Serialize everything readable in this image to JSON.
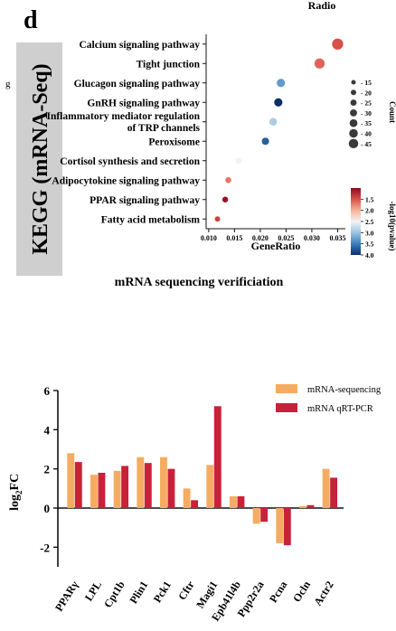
{
  "panel_letter": "d",
  "left_edge_mark": "g",
  "chart_data": [
    {
      "type": "scatter",
      "subtype": "bubble",
      "title": "Radio",
      "side_label": "KEGG (mRNA-Seq)",
      "xlabel": "GeneRatio",
      "xlim": [
        0.0095,
        0.0365
      ],
      "xticks": [
        {
          "v": 0.01,
          "label": "0.010"
        },
        {
          "v": 0.015,
          "label": "0.015"
        },
        {
          "v": 0.02,
          "label": "0.020"
        },
        {
          "v": 0.025,
          "label": "0.025"
        },
        {
          "v": 0.03,
          "label": "0.030"
        },
        {
          "v": 0.035,
          "label": "0.035"
        }
      ],
      "grid": false,
      "points": [
        {
          "pathway": "Calcium signaling pathway",
          "lines": [
            "Calcium signaling pathway"
          ],
          "gene_ratio": 0.035,
          "count": 45,
          "neg_log10_p": 1.5
        },
        {
          "pathway": "Tight junction",
          "lines": [
            "Tight junction"
          ],
          "gene_ratio": 0.0315,
          "count": 40,
          "neg_log10_p": 1.6
        },
        {
          "pathway": "Glucagon signaling pathway",
          "lines": [
            "Glucagon signaling pathway"
          ],
          "gene_ratio": 0.024,
          "count": 30,
          "neg_log10_p": 3.3
        },
        {
          "pathway": "GnRH signaling pathway",
          "lines": [
            "GnRH signaling pathway"
          ],
          "gene_ratio": 0.0235,
          "count": 30,
          "neg_log10_p": 4.0
        },
        {
          "pathway": "Inflammatory mediator regulation of TRP channels",
          "lines": [
            "Inflammatory mediator regulation",
            "of TRP channels"
          ],
          "gene_ratio": 0.0225,
          "count": 27,
          "neg_log10_p": 2.9
        },
        {
          "pathway": "Peroxisome",
          "lines": [
            "Peroxisome"
          ],
          "gene_ratio": 0.021,
          "count": 25,
          "neg_log10_p": 3.7
        },
        {
          "pathway": "Cortisol synthesis and secretion",
          "lines": [
            "Cortisol synthesis and secretion"
          ],
          "gene_ratio": 0.0158,
          "count": 20,
          "neg_log10_p": 2.5
        },
        {
          "pathway": "Adipocytokine signaling pathway",
          "lines": [
            "Adipocytokine signaling pathway"
          ],
          "gene_ratio": 0.0138,
          "count": 18,
          "neg_log10_p": 1.7
        },
        {
          "pathway": "PPAR signaling pathway",
          "lines": [
            "PPAR signaling pathway"
          ],
          "gene_ratio": 0.0132,
          "count": 17,
          "neg_log10_p": 1.05
        },
        {
          "pathway": "Fatty acid metabolism",
          "lines": [
            "Fatty acid metabolism"
          ],
          "gene_ratio": 0.0117,
          "count": 15,
          "neg_log10_p": 1.4
        }
      ],
      "size_legend": {
        "title": "Count",
        "values": [
          15,
          20,
          25,
          30,
          35,
          40,
          45
        ],
        "labels": [
          "15",
          "20",
          "25",
          "30",
          "35",
          "40",
          "45"
        ]
      },
      "color_legend": {
        "title": "-log10(pvalue)",
        "range": [
          1.0,
          4.0
        ],
        "ticks": [
          {
            "v": 1.5,
            "label": "1.5"
          },
          {
            "v": 2.0,
            "label": "2.0"
          },
          {
            "v": 2.5,
            "label": "2.5"
          },
          {
            "v": 3.0,
            "label": "3.0"
          },
          {
            "v": 3.5,
            "label": "3.5"
          },
          {
            "v": 4.0,
            "label": "4.0"
          }
        ],
        "colors_low_to_high": [
          "#8c0c1e",
          "#d8504a",
          "#f4b49a",
          "#f3f3f3",
          "#9cc4df",
          "#3c7fbe",
          "#0a2f6c"
        ]
      },
      "band_color": "#cfcfcf"
    },
    {
      "type": "bar",
      "title": "mRNA sequencing verificiation",
      "ylabel_main": "log",
      "ylabel_sub": "2",
      "ylabel_tail": "FC",
      "ylim": [
        -3,
        6
      ],
      "yticks": [
        {
          "v": -2,
          "label": "-2"
        },
        {
          "v": 0,
          "label": "0"
        },
        {
          "v": 2,
          "label": "2"
        },
        {
          "v": 4,
          "label": "4"
        },
        {
          "v": 6,
          "label": "6"
        }
      ],
      "grid": false,
      "legend_position": "top-right",
      "categories": [
        "PPARγ",
        "LPL",
        "Cpt1b",
        "Plin1",
        "Pck1",
        "Cftr",
        "Magi1",
        "Epb41l4b",
        "Ppp2r2a",
        "Pcna",
        "Ocln",
        "Actr2"
      ],
      "series": [
        {
          "name": "mRNA-sequencing",
          "color": "#f5ac62",
          "values": [
            2.8,
            1.7,
            1.9,
            2.6,
            2.6,
            1.0,
            2.2,
            0.6,
            -0.8,
            -1.8,
            0.1,
            2.0
          ]
        },
        {
          "name": "mRNA  qRT-PCR",
          "color": "#c8213a",
          "values": [
            2.35,
            1.8,
            2.15,
            2.3,
            2.0,
            0.4,
            5.2,
            0.6,
            -0.7,
            -1.9,
            0.15,
            1.55
          ]
        }
      ]
    }
  ]
}
